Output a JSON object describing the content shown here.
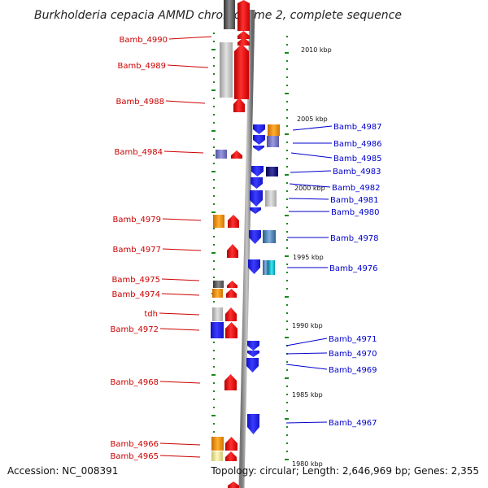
{
  "title": "Burkholderia cepacia AMMD chromosome 2, complete sequence",
  "accession": "Accession: NC_008391",
  "topology": "Topology: circular; Length: 2,646,969 bp; Genes: 2,355",
  "colors": {
    "forward": "#e01010",
    "reverse": "#1a1aee",
    "forward_label": "#cc0000",
    "reverse_label": "#0000cc",
    "tick": "#1a8a1a"
  },
  "kbp_marks": [
    "2010 kbp",
    "2005 kbp",
    "2000 kbp",
    "1995 kbp",
    "1990 kbp",
    "1985 kbp",
    "1980 kbp"
  ],
  "left_genes": [
    "Bamb_4990",
    "Bamb_4989",
    "Bamb_4988",
    "Bamb_4984",
    "Bamb_4979",
    "Bamb_4977",
    "Bamb_4975",
    "Bamb_4974",
    "tdh",
    "Bamb_4972",
    "Bamb_4968",
    "Bamb_4966",
    "Bamb_4965"
  ],
  "right_genes": [
    "Bamb_4987",
    "Bamb_4986",
    "Bamb_4985",
    "Bamb_4983",
    "Bamb_4982",
    "Bamb_4981",
    "Bamb_4980",
    "Bamb_4978",
    "Bamb_4976",
    "Bamb_4971",
    "Bamb_4970",
    "Bamb_4969",
    "Bamb_4967"
  ]
}
